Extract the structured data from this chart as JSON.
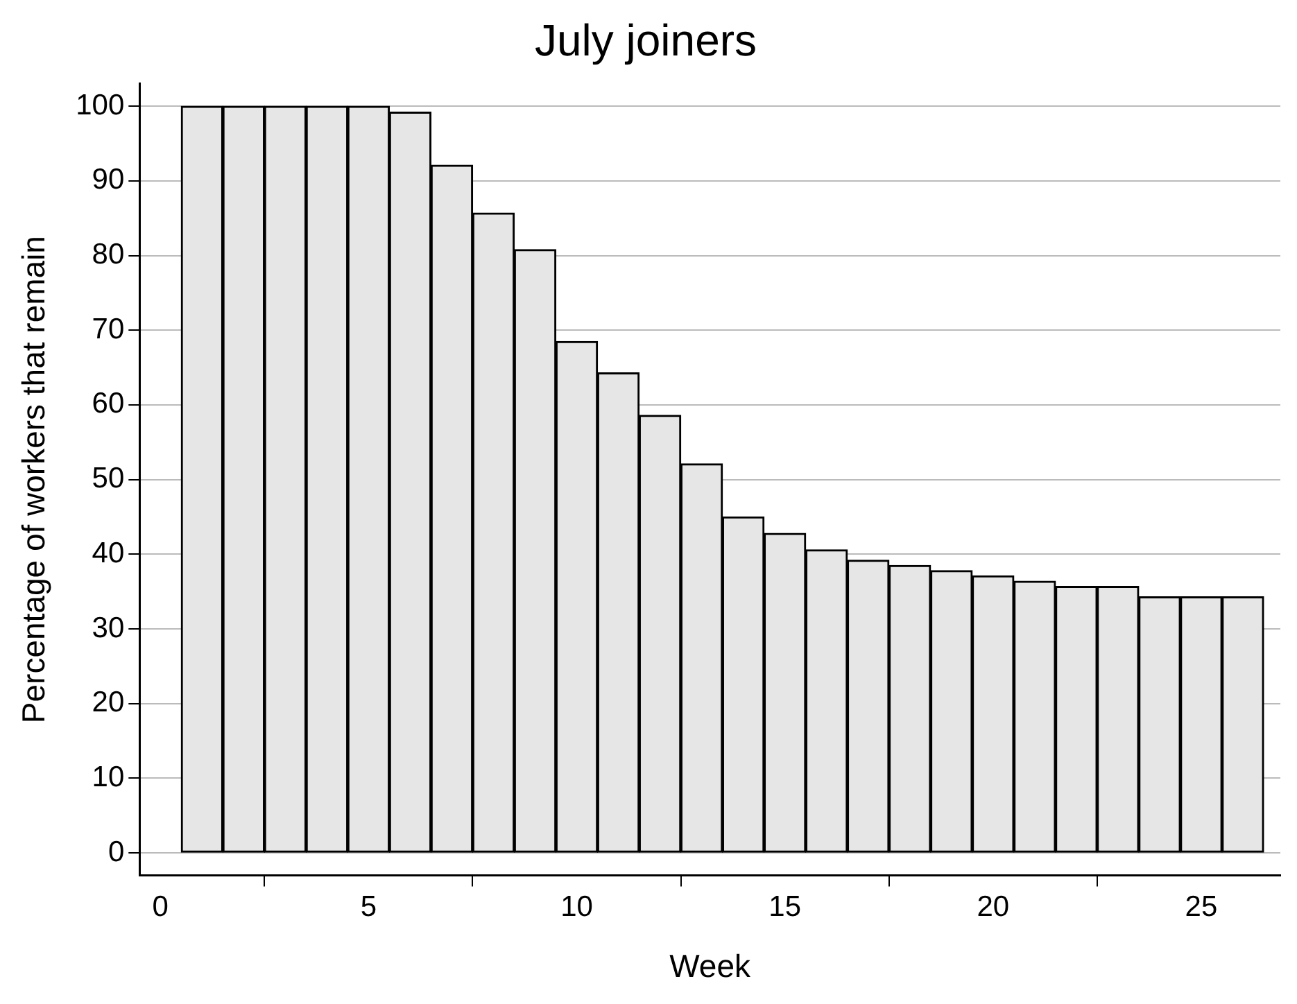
{
  "chart_data": {
    "type": "bar",
    "title": "July joiners",
    "xlabel": "Week",
    "ylabel": "Percentage of workers that remain",
    "x": [
      1,
      2,
      3,
      4,
      5,
      6,
      7,
      8,
      9,
      10,
      11,
      12,
      13,
      14,
      15,
      16,
      17,
      18,
      19,
      20,
      21,
      22,
      23,
      24,
      25,
      26
    ],
    "values": [
      100,
      100,
      100,
      100,
      100,
      99.2,
      92.1,
      85.7,
      80.8,
      68.5,
      64.3,
      58.6,
      52.1,
      45,
      42.8,
      40.6,
      39.2,
      38.5,
      37.8,
      37.1,
      36.4,
      35.7,
      35.7,
      34.3,
      34.3,
      34.3
    ],
    "color": "#e6e6e6",
    "xlim": [
      -0.5,
      26.9
    ],
    "xticks": [
      0,
      5,
      10,
      15,
      20,
      25
    ],
    "ylim": [
      -3,
      103
    ],
    "yticks": [
      0,
      10,
      20,
      30,
      40,
      50,
      60,
      70,
      80,
      90,
      100
    ],
    "grid": "y",
    "legend": false
  }
}
